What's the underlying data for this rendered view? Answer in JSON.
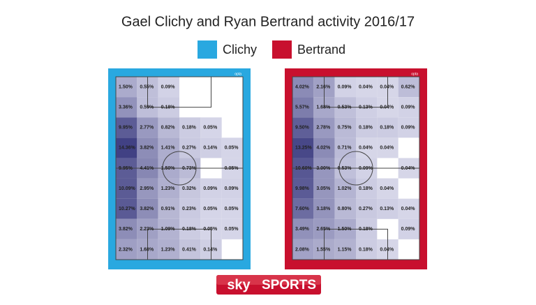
{
  "header": {
    "title": "Gael Clichy and Ryan Bertrand activity 2016/17"
  },
  "chart_data": [
    {
      "type": "heatmap",
      "name": "Clichy",
      "color": "#29a8e0",
      "source": "opta",
      "values": [
        [
          1.5,
          0.55,
          0.09,
          null,
          null,
          null
        ],
        [
          3.36,
          0.59,
          0.18,
          null,
          null,
          null
        ],
        [
          9.95,
          2.77,
          0.82,
          0.18,
          0.05,
          null
        ],
        [
          14.36,
          3.82,
          1.41,
          0.27,
          0.14,
          0.05
        ],
        [
          9.95,
          4.41,
          1.5,
          0.73,
          null,
          0.05
        ],
        [
          10.09,
          2.95,
          1.23,
          0.32,
          0.09,
          0.09
        ],
        [
          10.27,
          3.82,
          0.91,
          0.23,
          0.05,
          0.05
        ],
        [
          3.82,
          2.23,
          1.09,
          0.18,
          0.05,
          0.05
        ],
        [
          2.32,
          1.68,
          1.23,
          0.41,
          0.14,
          null
        ]
      ],
      "value_labels": [
        [
          "1.50%",
          "0.55%",
          "0.09%",
          null,
          null,
          null
        ],
        [
          "3.36%",
          "0.59%",
          "0.18%",
          null,
          null,
          null
        ],
        [
          "9.95%",
          "2.77%",
          "0.82%",
          "0.18%",
          "0.05%",
          null
        ],
        [
          "14.36%",
          "3.82%",
          "1.41%",
          "0.27%",
          "0.14%",
          "0.05%"
        ],
        [
          "9.95%",
          "4.41%",
          "1.50%",
          "0.73%",
          null,
          "0.05%"
        ],
        [
          "10.09%",
          "2.95%",
          "1.23%",
          "0.32%",
          "0.09%",
          "0.09%"
        ],
        [
          "10.27%",
          "3.82%",
          "0.91%",
          "0.23%",
          "0.05%",
          "0.05%"
        ],
        [
          "3.82%",
          "2.23%",
          "1.09%",
          "0.18%",
          "0.05%",
          "0.05%"
        ],
        [
          "2.32%",
          "1.68%",
          "1.23%",
          "0.41%",
          "0.14%",
          null
        ]
      ]
    },
    {
      "type": "heatmap",
      "name": "Bertrand",
      "color": "#c8102e",
      "source": "opta",
      "values": [
        [
          4.02,
          2.16,
          0.09,
          0.04,
          0.04,
          0.62
        ],
        [
          5.57,
          1.68,
          0.53,
          0.13,
          0.04,
          0.09
        ],
        [
          9.5,
          2.78,
          0.75,
          0.18,
          0.18,
          0.09
        ],
        [
          13.25,
          4.02,
          0.71,
          0.04,
          0.04,
          null
        ],
        [
          10.6,
          3.0,
          0.53,
          0.09,
          null,
          0.04
        ],
        [
          9.98,
          3.05,
          1.02,
          0.18,
          0.04,
          null
        ],
        [
          7.6,
          3.18,
          0.8,
          0.27,
          0.13,
          0.04
        ],
        [
          3.49,
          2.65,
          1.5,
          0.18,
          null,
          0.09
        ],
        [
          2.08,
          1.55,
          1.15,
          0.18,
          0.04,
          null
        ]
      ],
      "value_labels": [
        [
          "4.02%",
          "2.16%",
          "0.09%",
          "0.04%",
          "0.04%",
          "0.62%"
        ],
        [
          "5.57%",
          "1.68%",
          "0.53%",
          "0.13%",
          "0.04%",
          "0.09%"
        ],
        [
          "9.50%",
          "2.78%",
          "0.75%",
          "0.18%",
          "0.18%",
          "0.09%"
        ],
        [
          "13.25%",
          "4.02%",
          "0.71%",
          "0.04%",
          "0.04%",
          null
        ],
        [
          "10.60%",
          "3.00%",
          "0.53%",
          "0.09%",
          null,
          "0.04%"
        ],
        [
          "9.98%",
          "3.05%",
          "1.02%",
          "0.18%",
          "0.04%",
          null
        ],
        [
          "7.60%",
          "3.18%",
          "0.80%",
          "0.27%",
          "0.13%",
          "0.04%"
        ],
        [
          "3.49%",
          "2.65%",
          "1.50%",
          "0.18%",
          null,
          "0.09%"
        ],
        [
          "2.08%",
          "1.55%",
          "1.15%",
          "0.18%",
          "0.04%",
          null
        ]
      ]
    }
  ],
  "footer": {
    "logo_sky": "sky",
    "logo_sports": "SPORTS"
  }
}
